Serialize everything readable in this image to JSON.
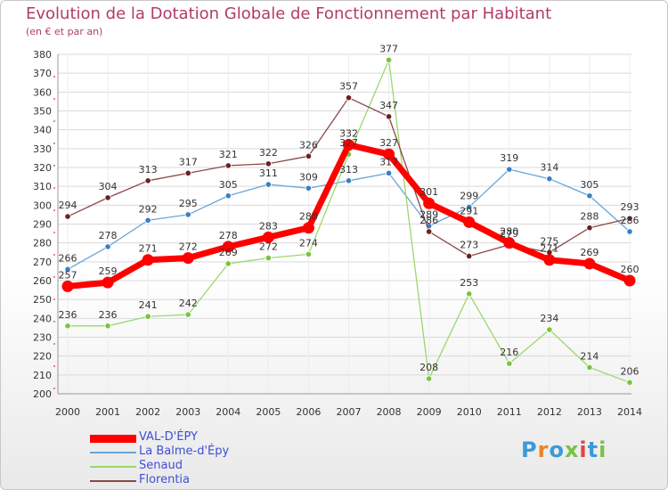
{
  "header": {
    "title": "Evolution de la Dotation Globale de Fonctionnement par Habitant",
    "subtitle": "(en € et par an)"
  },
  "brand": {
    "text": "Proxiti",
    "colors": [
      "#3b9ad9",
      "#e8852a",
      "#3b9ad9",
      "#7bc043",
      "#e04646",
      "#3b9ad9",
      "#7bc043"
    ]
  },
  "chart_data": {
    "type": "line",
    "title": "Evolution de la Dotation Globale de Fonctionnement par Habitant",
    "subtitle": "(en € et par an)",
    "x": [
      "2000",
      "2001",
      "2002",
      "2003",
      "2004",
      "2005",
      "2006",
      "2007",
      "2008",
      "2009",
      "2010",
      "2011",
      "2012",
      "2013",
      "2014"
    ],
    "ylim": [
      200,
      380
    ],
    "yticks": [
      200,
      210,
      220,
      230,
      240,
      250,
      260,
      270,
      280,
      290,
      300,
      310,
      320,
      330,
      340,
      350,
      360,
      370,
      380
    ],
    "grid": true,
    "legend_position": "bottom-left",
    "series": [
      {
        "name": "VAL-D'ÉPY",
        "color": "#ff0000",
        "point_color": "#e30000",
        "width": 7,
        "values": [
          257,
          259,
          271,
          272,
          278,
          283,
          288,
          332,
          327,
          301,
          291,
          280,
          271,
          269,
          260
        ],
        "labels": [
          "257",
          "259",
          "271",
          "272",
          "278",
          "283",
          "288",
          "332",
          "327",
          "301",
          "291",
          "280",
          "271",
          "269",
          "260"
        ]
      },
      {
        "name": "La Balme-d'Épy",
        "color": "#6aa5d8",
        "point_color": "#3a7fc4",
        "width": 1.3,
        "values": [
          266,
          278,
          292,
          295,
          305,
          311,
          309,
          313,
          317,
          289,
          299,
          319,
          314,
          305,
          286
        ],
        "labels": [
          "266",
          "278",
          "292",
          "295",
          "305",
          "311",
          "309",
          "313",
          "317",
          "289",
          "299",
          "319",
          "314",
          "305",
          "286"
        ]
      },
      {
        "name": "Senaud",
        "color": "#99d96b",
        "point_color": "#78c440",
        "width": 1.3,
        "values": [
          236,
          236,
          241,
          242,
          269,
          272,
          274,
          327,
          377,
          208,
          253,
          216,
          234,
          214,
          206
        ],
        "labels": [
          "236",
          "236",
          "241",
          "242",
          "269",
          "272",
          "274",
          "327",
          "377",
          "208",
          "253",
          "216",
          "234",
          "214",
          "206"
        ]
      },
      {
        "name": "Florentia",
        "color": "#8a4848",
        "point_color": "#6d2020",
        "width": 1.3,
        "values": [
          294,
          304,
          313,
          317,
          321,
          322,
          326,
          357,
          347,
          286,
          273,
          279,
          275,
          288,
          293
        ],
        "labels": [
          "294",
          "304",
          "313",
          "317",
          "321",
          "322",
          "326",
          "357",
          "347",
          "286",
          "273",
          "279",
          "275",
          "288",
          "293"
        ]
      }
    ]
  }
}
